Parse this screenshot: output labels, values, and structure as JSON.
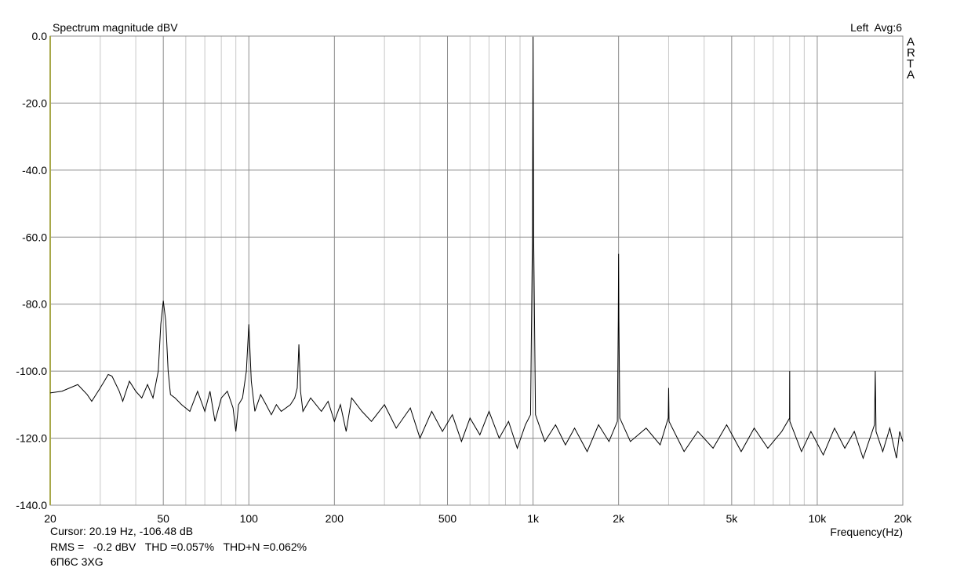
{
  "chart_data": {
    "type": "line",
    "title": "Spectrum magnitude dBV",
    "channel_label": "Left  Avg:6",
    "brand": "ARTA",
    "xlabel": "Frequency(Hz)",
    "cursor_readout": "Cursor: 20.19 Hz, -106.48 dB",
    "measurement_readout": "RMS =   -0.2 dBV   THD =0.057%   THD+N =0.062%",
    "device_label": "6П6С 3XG",
    "xscale": "log",
    "grid": true,
    "color": "#000000",
    "readout_color": "#cc0000",
    "xlim": [
      20,
      20000
    ],
    "ylim": [
      -140,
      0
    ],
    "xticks": [
      20,
      50,
      100,
      200,
      500,
      {
        "value": 1000,
        "label": "1k"
      },
      {
        "value": 2000,
        "label": "2k"
      },
      {
        "value": 5000,
        "label": "5k"
      },
      {
        "value": 10000,
        "label": "10k"
      },
      {
        "value": 20000,
        "label": "20k"
      }
    ],
    "minor_xticks": [
      30,
      40,
      60,
      70,
      80,
      90,
      300,
      400,
      600,
      700,
      800,
      900,
      3000,
      4000,
      6000,
      7000,
      8000,
      9000
    ],
    "yticks": [
      {
        "value": -140,
        "label": "-140.0"
      },
      {
        "value": -120,
        "label": "-120.0"
      },
      {
        "value": -100,
        "label": "-100.0"
      },
      {
        "value": -80,
        "label": "-80.0"
      },
      {
        "value": -60,
        "label": "-60.0"
      },
      {
        "value": -40,
        "label": "-40.0"
      },
      {
        "value": -20,
        "label": "-20.0"
      },
      {
        "value": 0,
        "label": "0.0"
      }
    ],
    "x": [
      20,
      22,
      25,
      27,
      28,
      30,
      31,
      32,
      33,
      35,
      36,
      38,
      40,
      42,
      44,
      46,
      47,
      48,
      49,
      50,
      51,
      52,
      53,
      55,
      58,
      62,
      66,
      70,
      73,
      76,
      80,
      84,
      88,
      90,
      92,
      95,
      98,
      100,
      102,
      105,
      110,
      115,
      120,
      125,
      130,
      140,
      145,
      148,
      150,
      152,
      155,
      165,
      180,
      190,
      200,
      210,
      220,
      230,
      250,
      270,
      300,
      330,
      370,
      400,
      440,
      480,
      520,
      560,
      600,
      650,
      700,
      760,
      820,
      880,
      940,
      980,
      995,
      1000,
      1005,
      1020,
      1100,
      1200,
      1300,
      1400,
      1550,
      1700,
      1850,
      1980,
      1995,
      2000,
      2005,
      2020,
      2200,
      2500,
      2800,
      2990,
      3000,
      3010,
      3400,
      3800,
      4300,
      4800,
      5400,
      6000,
      6700,
      7500,
      7990,
      8000,
      8010,
      8800,
      9500,
      10500,
      11500,
      12500,
      13500,
      14500,
      15900,
      16000,
      16100,
      17000,
      18000,
      19000,
      19500,
      20000
    ],
    "values": [
      -106.5,
      -106,
      -104,
      -107,
      -109,
      -105,
      -103,
      -101,
      -101.5,
      -106,
      -109,
      -103,
      -106,
      -108,
      -104,
      -108,
      -104,
      -100,
      -86,
      -79,
      -85,
      -100,
      -107,
      -108,
      -110,
      -112,
      -106,
      -112,
      -106,
      -115,
      -108,
      -106,
      -111,
      -118,
      -110,
      -108,
      -100,
      -86,
      -103,
      -112,
      -107,
      -110,
      -113,
      -110,
      -112,
      -110,
      -108,
      -105,
      -92,
      -106,
      -112,
      -108,
      -112,
      -109,
      -115,
      -110,
      -118,
      -108,
      -112,
      -115,
      -110,
      -117,
      -111,
      -120,
      -112,
      -118,
      -113,
      -121,
      -114,
      -119,
      -112,
      -120,
      -115,
      -123,
      -116,
      -113,
      -60,
      -0.2,
      -60,
      -113,
      -121,
      -116,
      -122,
      -117,
      -124,
      -116,
      -121,
      -115,
      -85,
      -65,
      -85,
      -114,
      -121,
      -117,
      -122,
      -114,
      -105,
      -115,
      -124,
      -118,
      -123,
      -116,
      -124,
      -117,
      -123,
      -118,
      -114,
      -100,
      -115,
      -124,
      -118,
      -125,
      -117,
      -123,
      -118,
      -126,
      -116,
      -100,
      -118,
      -124,
      -117,
      -126,
      -118,
      -121
    ]
  }
}
